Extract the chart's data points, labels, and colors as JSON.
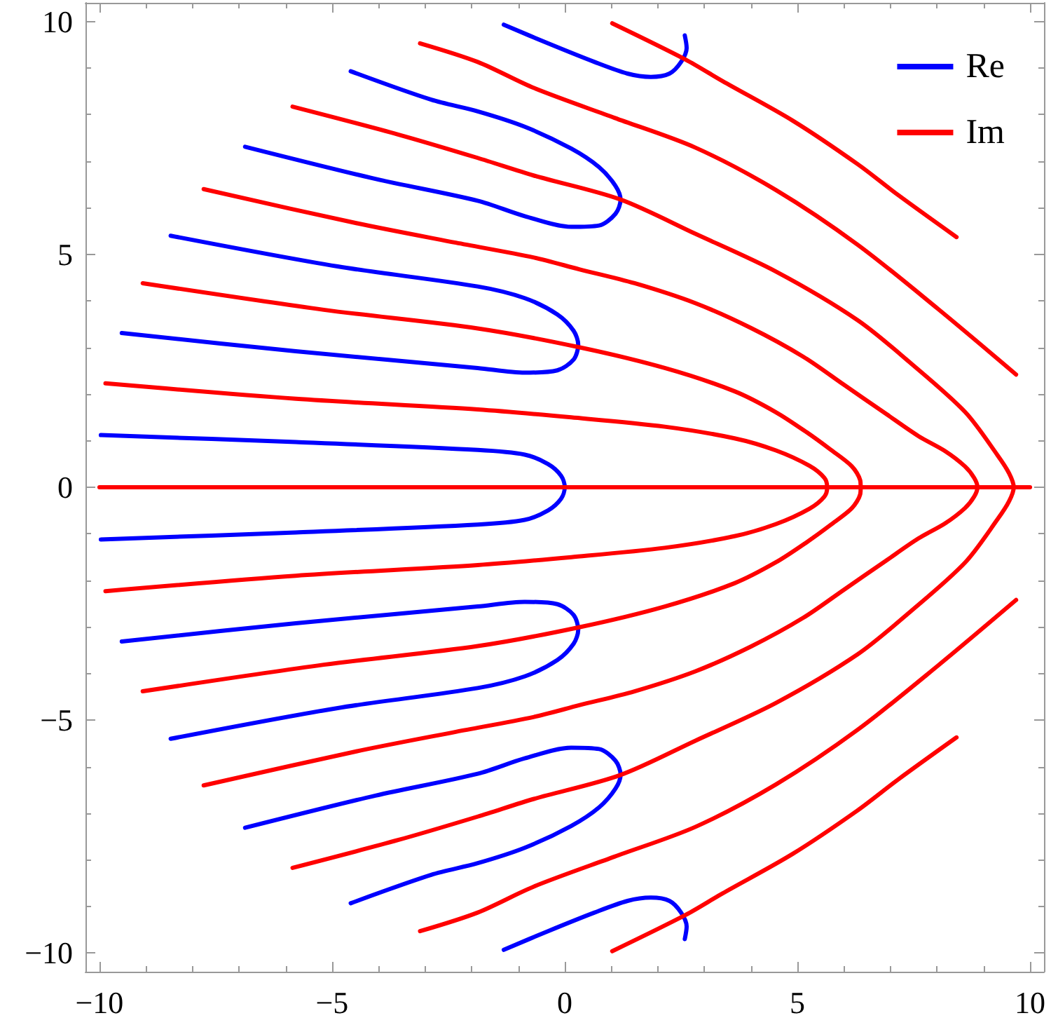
{
  "chart_data": {
    "type": "line",
    "legend": "top right",
    "xlim": [
      -10.3,
      10.3
    ],
    "ylim": [
      -10.4,
      10.4
    ],
    "xticks": [
      {
        "value": -10,
        "label": "−10"
      },
      {
        "value": -9,
        "label": null
      },
      {
        "value": -8,
        "label": null
      },
      {
        "value": -7,
        "label": null
      },
      {
        "value": -6,
        "label": null
      },
      {
        "value": -5,
        "label": "−5"
      },
      {
        "value": -4,
        "label": null
      },
      {
        "value": -3,
        "label": null
      },
      {
        "value": -2,
        "label": null
      },
      {
        "value": -1,
        "label": null
      },
      0,
      {
        "value": 1,
        "label": null
      },
      {
        "value": 2,
        "label": null
      },
      {
        "value": 3,
        "label": null
      },
      {
        "value": 4,
        "label": null
      },
      5,
      {
        "value": 6,
        "label": null
      },
      {
        "value": 7,
        "label": null
      },
      {
        "value": 8,
        "label": null
      },
      {
        "value": 9,
        "label": null
      },
      10
    ],
    "yticks": [
      {
        "value": -10,
        "label": "−10"
      },
      {
        "value": -9,
        "label": null
      },
      {
        "value": -8,
        "label": null
      },
      {
        "value": -7,
        "label": null
      },
      {
        "value": -6,
        "label": null
      },
      {
        "value": -5,
        "label": "−5"
      },
      {
        "value": -4,
        "label": null
      },
      {
        "value": -3,
        "label": null
      },
      {
        "value": -2,
        "label": null
      },
      {
        "value": -1,
        "label": null
      },
      0,
      {
        "value": 1,
        "label": null
      },
      {
        "value": 2,
        "label": null
      },
      {
        "value": 3,
        "label": null
      },
      {
        "value": 4,
        "label": null
      },
      5,
      {
        "value": 6,
        "label": null
      },
      {
        "value": 7,
        "label": null
      },
      {
        "value": 8,
        "label": null
      },
      {
        "value": 9,
        "label": null
      },
      10
    ],
    "series": [
      {
        "name": "Re",
        "color": "#0000ff",
        "x": [
          -9.97,
          -5.78,
          -1.87,
          -0.86,
          -0.36,
          -0.08,
          0,
          -0.08,
          -0.36,
          -0.86,
          -1.87,
          -5.78,
          -9.97
        ],
        "values": [
          1.12,
          0.97,
          0.8,
          0.7,
          0.5,
          0.25,
          0,
          -0.25,
          -0.5,
          -0.7,
          -0.8,
          -0.97,
          -1.12
        ]
      },
      {
        "color": "#0000ff",
        "x": [
          -8.47,
          -4.88,
          -1.87,
          -0.86,
          -0.16,
          0.19,
          0.29,
          0.19,
          -0.16,
          -0.86,
          -1.87,
          -5.78,
          -9.52
        ],
        "values": [
          5.4,
          4.74,
          4.31,
          4.06,
          3.71,
          3.36,
          3.06,
          2.74,
          2.51,
          2.46,
          2.56,
          2.92,
          3.31
        ]
      },
      {
        "color": "#0000ff",
        "x": [
          -8.47,
          -4.88,
          -1.87,
          -0.86,
          -0.16,
          0.19,
          0.29,
          0.19,
          -0.16,
          -0.86,
          -1.87,
          -5.78,
          -9.52
        ],
        "values": [
          -5.4,
          -4.74,
          -4.31,
          -4.06,
          -3.71,
          -3.36,
          -3.06,
          -2.74,
          -2.51,
          -2.46,
          -2.56,
          -2.92,
          -3.31
        ]
      },
      {
        "color": "#0000ff",
        "x": [
          -4.6,
          -2.87,
          -1.87,
          -0.86,
          0.14,
          0.74,
          1.09,
          1.2,
          1.09,
          0.74,
          0.14,
          -0.86,
          -1.87,
          -4.07,
          -6.87
        ],
        "values": [
          8.93,
          8.32,
          8.07,
          7.74,
          7.27,
          6.87,
          6.47,
          6.17,
          5.87,
          5.62,
          5.59,
          5.82,
          6.15,
          6.62,
          7.31
        ]
      },
      {
        "color": "#0000ff",
        "x": [
          -4.6,
          -2.87,
          -1.87,
          -0.86,
          0.14,
          0.74,
          1.09,
          1.2,
          1.09,
          0.74,
          0.14,
          -0.86,
          -1.87,
          -4.07,
          -6.87
        ],
        "values": [
          -8.93,
          -8.32,
          -8.07,
          -7.74,
          -7.27,
          -6.87,
          -6.47,
          -6.17,
          -5.87,
          -5.62,
          -5.59,
          -5.82,
          -6.15,
          -6.62,
          -7.31
        ]
      },
      {
        "color": "#0000ff",
        "x": [
          -1.31,
          -0.36,
          0.64,
          1.35,
          1.85,
          2.25,
          2.5,
          2.62,
          2.58
        ],
        "values": [
          9.93,
          9.53,
          9.13,
          8.88,
          8.81,
          8.88,
          9.13,
          9.43,
          9.7
        ]
      },
      {
        "color": "#0000ff",
        "x": [
          -1.31,
          -0.36,
          0.64,
          1.35,
          1.85,
          2.25,
          2.5,
          2.62,
          2.58
        ],
        "values": [
          -9.93,
          -9.53,
          -9.13,
          -8.88,
          -8.81,
          -8.88,
          -9.13,
          -9.43,
          -9.7
        ]
      },
      {
        "name": "Im",
        "color": "#ff0000",
        "x": [
          -10,
          10
        ],
        "values": [
          0,
          0
        ]
      },
      {
        "color": "#ff0000",
        "x": [
          -9.87,
          -5.78,
          -1.87,
          0.14,
          2.15,
          3.65,
          4.54,
          5.26,
          5.58,
          5.64,
          5.58,
          5.26,
          4.54,
          3.65,
          2.15,
          0.14,
          -1.87,
          -5.78,
          -9.87
        ],
        "values": [
          2.23,
          1.9,
          1.67,
          1.5,
          1.3,
          1.05,
          0.79,
          0.46,
          0.2,
          0,
          -0.2,
          -0.46,
          -0.79,
          -1.05,
          -1.3,
          -1.5,
          -1.67,
          -1.9,
          -2.23
        ]
      },
      {
        "color": "#ff0000",
        "x": [
          -9.07,
          -5.18,
          -1.87,
          0.29,
          2.15,
          3.65,
          4.54,
          5.2,
          5.71,
          6.17,
          6.35,
          6.36,
          6.35,
          6.17,
          5.71,
          5.2,
          4.54,
          3.65,
          2.15,
          0.29,
          -1.87,
          -5.18,
          -9.07
        ],
        "values": [
          4.38,
          3.81,
          3.41,
          3.01,
          2.56,
          2.06,
          1.61,
          1.18,
          0.81,
          0.45,
          0.15,
          0,
          -0.15,
          -0.45,
          -0.81,
          -1.18,
          -1.61,
          -2.06,
          -2.56,
          -3.01,
          -3.41,
          -3.81,
          -4.38
        ]
      },
      {
        "color": "#ff0000",
        "x": [
          -7.76,
          -4.48,
          -2.34,
          -0.66,
          0.31,
          1.5,
          2.81,
          4.0,
          5.13,
          6.0,
          6.9,
          7.6,
          8.17,
          8.6,
          8.8,
          8.87,
          8.8,
          8.6,
          8.17,
          7.6,
          6.9,
          6.0,
          5.13,
          4.0,
          2.81,
          1.5,
          0.31,
          -0.66,
          -2.34,
          -4.48,
          -7.76
        ],
        "values": [
          6.4,
          5.67,
          5.25,
          4.93,
          4.68,
          4.38,
          3.95,
          3.42,
          2.8,
          2.2,
          1.58,
          1.1,
          0.78,
          0.45,
          0.2,
          0,
          -0.2,
          -0.45,
          -0.78,
          -1.1,
          -1.58,
          -2.2,
          -2.8,
          -3.42,
          -3.95,
          -4.38,
          -4.68,
          -4.93,
          -5.25,
          -5.67,
          -6.4
        ]
      },
      {
        "color": "#ff0000",
        "x": [
          -5.85,
          -3.57,
          -1.87,
          -0.66,
          1.19,
          2.81,
          4.54,
          6.29,
          7.44,
          8.61,
          9.3,
          9.55,
          9.65,
          9.55,
          9.3,
          8.61,
          7.44,
          6.29,
          4.54,
          2.81,
          1.19,
          -0.66,
          -1.87,
          -3.57,
          -5.85
        ],
        "values": [
          8.17,
          7.57,
          7.07,
          6.69,
          6.18,
          5.44,
          4.63,
          3.59,
          2.66,
          1.61,
          0.69,
          0.3,
          0,
          -0.3,
          -0.69,
          -1.61,
          -2.66,
          -3.59,
          -4.63,
          -5.44,
          -6.18,
          -6.69,
          -7.07,
          -7.57,
          -8.17
        ]
      },
      {
        "color": "#ff0000",
        "x": [
          -3.11,
          -1.87,
          -0.66,
          1.07,
          2.81,
          4.54,
          6.29,
          8.02,
          9.7
        ],
        "values": [
          9.53,
          9.13,
          8.57,
          7.93,
          7.29,
          6.38,
          5.21,
          3.83,
          2.42
        ]
      },
      {
        "color": "#ff0000",
        "x": [
          -3.11,
          -1.87,
          -0.66,
          1.07,
          2.81,
          4.54,
          6.29,
          8.02,
          9.7
        ],
        "values": [
          -9.53,
          -9.13,
          -8.57,
          -7.93,
          -7.29,
          -6.38,
          -5.21,
          -3.83,
          -2.42
        ]
      },
      {
        "color": "#ff0000",
        "x": [
          1.02,
          2.6,
          3.39,
          4.9,
          6.29,
          7.17,
          8.42
        ],
        "values": [
          9.96,
          9.18,
          8.72,
          7.87,
          6.94,
          6.27,
          5.37
        ]
      },
      {
        "color": "#ff0000",
        "x": [
          1.02,
          2.6,
          3.39,
          4.9,
          6.29,
          7.17,
          8.42
        ],
        "values": [
          -9.96,
          -9.18,
          -8.72,
          -7.87,
          -6.94,
          -6.27,
          -5.37
        ]
      }
    ]
  }
}
